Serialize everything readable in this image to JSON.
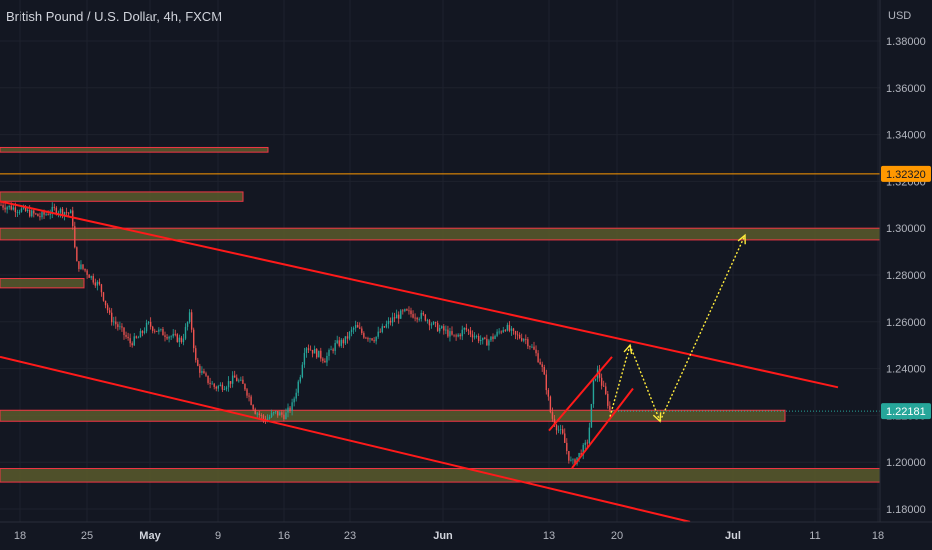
{
  "header": {
    "title": "British Pound / U.S. Dollar, 4h, FXCM"
  },
  "currency": "USD",
  "price_labels": [
    {
      "value": "1.32320",
      "bg": "#ff9800",
      "color": "#131722",
      "level": 1.3232
    },
    {
      "value": "1.22181",
      "bg": "#26a69a",
      "color": "#ffffff",
      "level": 1.22181
    }
  ],
  "colors": {
    "up": "#26a69a",
    "down": "#ef5350",
    "trend": "#ff1a1a",
    "arrow": "#ffeb3b",
    "zone_fill": "#5b5a2c",
    "zone_border": "#f23645",
    "bg": "#131722"
  },
  "chart_data": {
    "type": "candlestick",
    "title": "British Pound / U.S. Dollar, 4h, FXCM",
    "ylabel": "USD",
    "ylim": [
      1.172,
      1.392
    ],
    "y_ticks": [
      "1.38000",
      "1.36000",
      "1.34000",
      "1.32000",
      "1.30000",
      "1.28000",
      "1.26000",
      "1.24000",
      "1.22000",
      "1.20000",
      "1.18000"
    ],
    "x_ticks": [
      {
        "label": "18",
        "bold": false
      },
      {
        "label": "25",
        "bold": false
      },
      {
        "label": "May",
        "bold": true
      },
      {
        "label": "9",
        "bold": false
      },
      {
        "label": "16",
        "bold": false
      },
      {
        "label": "23",
        "bold": false
      },
      {
        "label": "Jun",
        "bold": true
      },
      {
        "label": "13",
        "bold": false
      },
      {
        "label": "20",
        "bold": false
      },
      {
        "label": "Jul",
        "bold": true
      },
      {
        "label": "11",
        "bold": false
      },
      {
        "label": "18",
        "bold": false
      }
    ],
    "price_path": [
      [
        0,
        1.31
      ],
      [
        20,
        1.308
      ],
      [
        40,
        1.305
      ],
      [
        55,
        1.308
      ],
      [
        65,
        1.307
      ],
      [
        72,
        1.306
      ],
      [
        76,
        1.285
      ],
      [
        85,
        1.282
      ],
      [
        100,
        1.275
      ],
      [
        110,
        1.262
      ],
      [
        120,
        1.257
      ],
      [
        130,
        1.251
      ],
      [
        138,
        1.253
      ],
      [
        148,
        1.259
      ],
      [
        158,
        1.256
      ],
      [
        170,
        1.254
      ],
      [
        182,
        1.252
      ],
      [
        190,
        1.263
      ],
      [
        196,
        1.242
      ],
      [
        205,
        1.236
      ],
      [
        215,
        1.232
      ],
      [
        225,
        1.233
      ],
      [
        235,
        1.236
      ],
      [
        245,
        1.232
      ],
      [
        255,
        1.222
      ],
      [
        265,
        1.218
      ],
      [
        275,
        1.221
      ],
      [
        285,
        1.22
      ],
      [
        292,
        1.224
      ],
      [
        300,
        1.237
      ],
      [
        305,
        1.25
      ],
      [
        315,
        1.247
      ],
      [
        325,
        1.244
      ],
      [
        335,
        1.25
      ],
      [
        345,
        1.252
      ],
      [
        355,
        1.258
      ],
      [
        365,
        1.254
      ],
      [
        375,
        1.253
      ],
      [
        385,
        1.258
      ],
      [
        395,
        1.262
      ],
      [
        405,
        1.264
      ],
      [
        415,
        1.263
      ],
      [
        425,
        1.262
      ],
      [
        435,
        1.258
      ],
      [
        445,
        1.256
      ],
      [
        455,
        1.253
      ],
      [
        465,
        1.257
      ],
      [
        475,
        1.254
      ],
      [
        485,
        1.251
      ],
      [
        495,
        1.254
      ],
      [
        505,
        1.258
      ],
      [
        515,
        1.254
      ],
      [
        525,
        1.253
      ],
      [
        535,
        1.247
      ],
      [
        541,
        1.242
      ],
      [
        546,
        1.233
      ],
      [
        551,
        1.22
      ],
      [
        557,
        1.215
      ],
      [
        563,
        1.211
      ],
      [
        568,
        1.203
      ],
      [
        572,
        1.199
      ],
      [
        577,
        1.202
      ],
      [
        582,
        1.205
      ],
      [
        587,
        1.208
      ],
      [
        590,
        1.217
      ],
      [
        594,
        1.236
      ],
      [
        598,
        1.239
      ],
      [
        602,
        1.233
      ],
      [
        606,
        1.228
      ],
      [
        610,
        1.222
      ]
    ],
    "zones": [
      {
        "x0": 0,
        "x1": 268,
        "top": 1.3345,
        "bottom": 1.3325
      },
      {
        "x0": 0,
        "x1": 243,
        "top": 1.3155,
        "bottom": 1.3115
      },
      {
        "x0": 0,
        "x1": 880,
        "top": 1.3,
        "bottom": 1.295
      },
      {
        "x0": 0,
        "x1": 84,
        "top": 1.2785,
        "bottom": 1.2745
      },
      {
        "x0": 0,
        "x1": 785,
        "top": 1.2222,
        "bottom": 1.2175
      },
      {
        "x0": 0,
        "x1": 880,
        "top": 1.1973,
        "bottom": 1.1915
      }
    ],
    "trend_lines": [
      {
        "x1": 0,
        "y1": 1.3115,
        "x2": 838,
        "y2": 1.232
      },
      {
        "x1": 0,
        "y1": 1.245,
        "x2": 690,
        "y2": 1.1745
      },
      {
        "x1": 549,
        "y1": 1.2135,
        "x2": 612,
        "y2": 1.245
      },
      {
        "x1": 572,
        "y1": 1.1975,
        "x2": 633,
        "y2": 1.2315
      }
    ],
    "arrows": [
      [
        [
          610,
          1.2195
        ],
        [
          630,
          1.25
        ],
        [
          660,
          1.2175
        ],
        [
          745,
          1.297
        ]
      ]
    ],
    "plot_x_max": 880
  }
}
